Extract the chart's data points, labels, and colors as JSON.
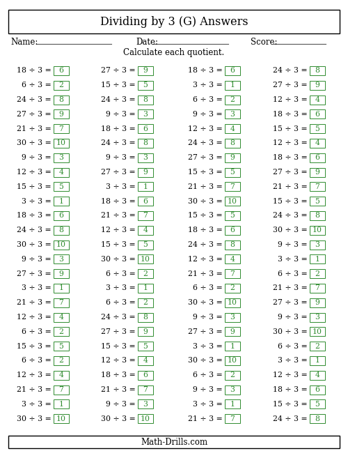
{
  "title": "Dividing by 3 (G) Answers",
  "subtitle": "Calculate each quotient.",
  "footer": "Math-Drills.com",
  "name_label": "Name:",
  "date_label": "Date:",
  "score_label": "Score:",
  "problem_color": "#000000",
  "answer_color": "#2e8b2e",
  "answer_box_color": "#2e8b2e",
  "background_color": "#ffffff",
  "columns": [
    [
      [
        "18 ÷ 3 =",
        "6"
      ],
      [
        "6 ÷ 3 =",
        "2"
      ],
      [
        "24 ÷ 3 =",
        "8"
      ],
      [
        "27 ÷ 3 =",
        "9"
      ],
      [
        "21 ÷ 3 =",
        "7"
      ],
      [
        "30 ÷ 3 =",
        "10"
      ],
      [
        "9 ÷ 3 =",
        "3"
      ],
      [
        "12 ÷ 3 =",
        "4"
      ],
      [
        "15 ÷ 3 =",
        "5"
      ],
      [
        "3 ÷ 3 =",
        "1"
      ],
      [
        "18 ÷ 3 =",
        "6"
      ],
      [
        "24 ÷ 3 =",
        "8"
      ],
      [
        "30 ÷ 3 =",
        "10"
      ],
      [
        "9 ÷ 3 =",
        "3"
      ],
      [
        "27 ÷ 3 =",
        "9"
      ],
      [
        "3 ÷ 3 =",
        "1"
      ],
      [
        "21 ÷ 3 =",
        "7"
      ],
      [
        "12 ÷ 3 =",
        "4"
      ],
      [
        "6 ÷ 3 =",
        "2"
      ],
      [
        "15 ÷ 3 =",
        "5"
      ],
      [
        "6 ÷ 3 =",
        "2"
      ],
      [
        "12 ÷ 3 =",
        "4"
      ],
      [
        "21 ÷ 3 =",
        "7"
      ],
      [
        "3 ÷ 3 =",
        "1"
      ],
      [
        "30 ÷ 3 =",
        "10"
      ]
    ],
    [
      [
        "27 ÷ 3 =",
        "9"
      ],
      [
        "15 ÷ 3 =",
        "5"
      ],
      [
        "24 ÷ 3 =",
        "8"
      ],
      [
        "9 ÷ 3 =",
        "3"
      ],
      [
        "18 ÷ 3 =",
        "6"
      ],
      [
        "24 ÷ 3 =",
        "8"
      ],
      [
        "9 ÷ 3 =",
        "3"
      ],
      [
        "27 ÷ 3 =",
        "9"
      ],
      [
        "3 ÷ 3 =",
        "1"
      ],
      [
        "18 ÷ 3 =",
        "6"
      ],
      [
        "21 ÷ 3 =",
        "7"
      ],
      [
        "12 ÷ 3 =",
        "4"
      ],
      [
        "15 ÷ 3 =",
        "5"
      ],
      [
        "30 ÷ 3 =",
        "10"
      ],
      [
        "6 ÷ 3 =",
        "2"
      ],
      [
        "3 ÷ 3 =",
        "1"
      ],
      [
        "6 ÷ 3 =",
        "2"
      ],
      [
        "24 ÷ 3 =",
        "8"
      ],
      [
        "27 ÷ 3 =",
        "9"
      ],
      [
        "15 ÷ 3 =",
        "5"
      ],
      [
        "12 ÷ 3 =",
        "4"
      ],
      [
        "18 ÷ 3 =",
        "6"
      ],
      [
        "21 ÷ 3 =",
        "7"
      ],
      [
        "9 ÷ 3 =",
        "3"
      ],
      [
        "30 ÷ 3 =",
        "10"
      ]
    ],
    [
      [
        "18 ÷ 3 =",
        "6"
      ],
      [
        "3 ÷ 3 =",
        "1"
      ],
      [
        "6 ÷ 3 =",
        "2"
      ],
      [
        "9 ÷ 3 =",
        "3"
      ],
      [
        "12 ÷ 3 =",
        "4"
      ],
      [
        "24 ÷ 3 =",
        "8"
      ],
      [
        "27 ÷ 3 =",
        "9"
      ],
      [
        "15 ÷ 3 =",
        "5"
      ],
      [
        "21 ÷ 3 =",
        "7"
      ],
      [
        "30 ÷ 3 =",
        "10"
      ],
      [
        "15 ÷ 3 =",
        "5"
      ],
      [
        "18 ÷ 3 =",
        "6"
      ],
      [
        "24 ÷ 3 =",
        "8"
      ],
      [
        "12 ÷ 3 =",
        "4"
      ],
      [
        "21 ÷ 3 =",
        "7"
      ],
      [
        "6 ÷ 3 =",
        "2"
      ],
      [
        "30 ÷ 3 =",
        "10"
      ],
      [
        "9 ÷ 3 =",
        "3"
      ],
      [
        "27 ÷ 3 =",
        "9"
      ],
      [
        "3 ÷ 3 =",
        "1"
      ],
      [
        "30 ÷ 3 =",
        "10"
      ],
      [
        "6 ÷ 3 =",
        "2"
      ],
      [
        "9 ÷ 3 =",
        "3"
      ],
      [
        "3 ÷ 3 =",
        "1"
      ],
      [
        "21 ÷ 3 =",
        "7"
      ]
    ],
    [
      [
        "24 ÷ 3 =",
        "8"
      ],
      [
        "27 ÷ 3 =",
        "9"
      ],
      [
        "12 ÷ 3 =",
        "4"
      ],
      [
        "18 ÷ 3 =",
        "6"
      ],
      [
        "15 ÷ 3 =",
        "5"
      ],
      [
        "12 ÷ 3 =",
        "4"
      ],
      [
        "18 ÷ 3 =",
        "6"
      ],
      [
        "27 ÷ 3 =",
        "9"
      ],
      [
        "21 ÷ 3 =",
        "7"
      ],
      [
        "15 ÷ 3 =",
        "5"
      ],
      [
        "24 ÷ 3 =",
        "8"
      ],
      [
        "30 ÷ 3 =",
        "10"
      ],
      [
        "9 ÷ 3 =",
        "3"
      ],
      [
        "3 ÷ 3 =",
        "1"
      ],
      [
        "6 ÷ 3 =",
        "2"
      ],
      [
        "21 ÷ 3 =",
        "7"
      ],
      [
        "27 ÷ 3 =",
        "9"
      ],
      [
        "9 ÷ 3 =",
        "3"
      ],
      [
        "30 ÷ 3 =",
        "10"
      ],
      [
        "6 ÷ 3 =",
        "2"
      ],
      [
        "3 ÷ 3 =",
        "1"
      ],
      [
        "12 ÷ 3 =",
        "4"
      ],
      [
        "18 ÷ 3 =",
        "6"
      ],
      [
        "15 ÷ 3 =",
        "5"
      ],
      [
        "24 ÷ 3 =",
        "8"
      ]
    ]
  ]
}
